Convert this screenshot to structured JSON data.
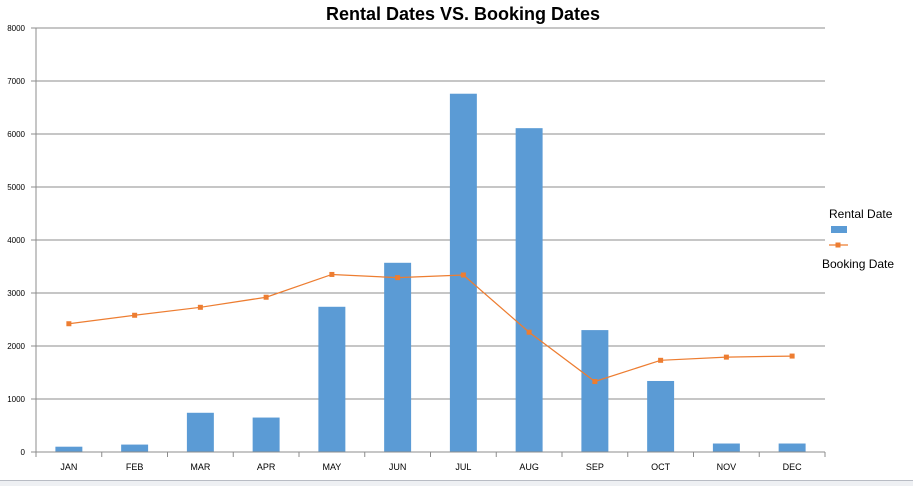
{
  "chart_data": {
    "type": "bar",
    "title": "Rental Dates VS. Booking Dates",
    "categories": [
      "JAN",
      "FEB",
      "MAR",
      "APR",
      "MAY",
      "JUN",
      "JUL",
      "AUG",
      "SEP",
      "OCT",
      "NOV",
      "DEC"
    ],
    "series": [
      {
        "name": "Rental Date",
        "kind": "bar",
        "values": [
          100,
          140,
          740,
          650,
          2740,
          3570,
          6760,
          6110,
          2300,
          1340,
          160,
          160
        ]
      },
      {
        "name": "Booking Date",
        "kind": "line",
        "values": [
          2420,
          2580,
          2730,
          2920,
          3350,
          3290,
          3340,
          2260,
          1330,
          1730,
          1790,
          1810
        ]
      }
    ],
    "ylim": [
      0,
      8000
    ],
    "yticks": [
      "0",
      "1000",
      "2000",
      "3000",
      "4000",
      "5000",
      "6000",
      "7000",
      "8000"
    ],
    "grid": true,
    "legend_position": "right",
    "colors": {
      "bar": "#5b9bd5",
      "line": "#ed7d31",
      "grid": "#8c8c8c",
      "axis": "#8c8c8c"
    }
  }
}
